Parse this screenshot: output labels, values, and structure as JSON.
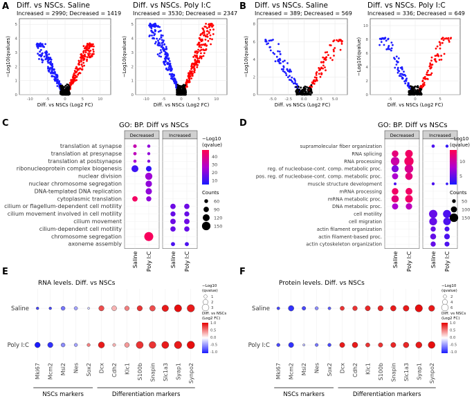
{
  "colors": {
    "increased": "#ff0000",
    "decreased": "#1a1aff",
    "ns": "#000000",
    "strip": "#d0d0d0"
  },
  "panel_a": {
    "letter": "A",
    "plots": [
      {
        "title": "Diff. vs NSCs. Saline",
        "subtitle": "Increased = 2990; Decreased = 1419",
        "ylabel": "−Log10(qvalues)",
        "xlabel": "Diff. vs NSCs (Log2 FC)",
        "xticks": [
          "-10",
          "-5",
          "0",
          "5",
          "10"
        ],
        "yticks": [
          "0",
          "1",
          "2",
          "3",
          "4",
          "5"
        ],
        "xlim": [
          -13,
          13
        ],
        "ylim": [
          0,
          5.4
        ],
        "spread": 7.5,
        "height": 3.4,
        "npts": 380
      },
      {
        "title": "Diff. vs NSCs. Poly I:C",
        "subtitle": "Increased = 3530; Decreased = 2347",
        "ylabel": "−Log10(qvalues)",
        "xlabel": "Diff. vs NSCs (Log2 FC)",
        "xticks": [
          "-10",
          "-5",
          "0",
          "5",
          "10"
        ],
        "yticks": [
          "0",
          "1",
          "2",
          "3",
          "4",
          "5"
        ],
        "xlim": [
          -13,
          13
        ],
        "ylim": [
          0,
          5.4
        ],
        "spread": 8.5,
        "height": 4.8,
        "npts": 460
      }
    ]
  },
  "panel_b": {
    "letter": "B",
    "plots": [
      {
        "title": "Diff. vs NSCs. Saline",
        "subtitle": "Increased = 389; Decreased = 569",
        "ylabel": "−Log10(qvalues)",
        "xlabel": "Diff. vs NSCs (Log2 FC)",
        "xticks": [
          "-5.0",
          "-2.5",
          "0.0",
          "2.5",
          "5.0"
        ],
        "yticks": [
          "0",
          "2",
          "4",
          "6",
          "8"
        ],
        "xlim": [
          -7.5,
          7
        ],
        "ylim": [
          0,
          8.6
        ],
        "spread": 5.5,
        "height": 6,
        "npts": 170
      },
      {
        "title": "Diff. vs NSCs. Poly I:C",
        "subtitle": "Increased = 336; Decreased = 649",
        "ylabel": "−Log10(qvalue)",
        "xlabel": "Diff. vs NSCs (Log2 FC)",
        "xticks": [
          "-5",
          "0",
          "5"
        ],
        "yticks": [
          "0",
          "2",
          "4",
          "6",
          "8",
          "10"
        ],
        "xlim": [
          -9,
          9
        ],
        "ylim": [
          0,
          11
        ],
        "spread": 6.5,
        "height": 8,
        "npts": 170
      }
    ]
  },
  "panel_c": {
    "letter": "C",
    "title": "GO: BP. Diff vs NSCs",
    "facets": [
      "Decreased",
      "Increased"
    ],
    "columns": [
      "Saline",
      "Poly I:C"
    ],
    "terms": [
      "translation at synapse",
      "translation at presynapse",
      "translation at postsynapse",
      "ribonucleoprotein complex biogenesis",
      "nuclear division",
      "nuclear chromosome segregation",
      "DNA-templated DNA replication",
      "cytoplasmic translation",
      "cilium or flagellum-dependent cell motility",
      "cilium movement involved in cell motility",
      "cilium movement",
      "cilium-dependent cell motility",
      "chromosome segregation",
      "axoneme assembly"
    ],
    "legend_title": [
      "−Log10",
      "(qvalue)"
    ],
    "color_ticks": [
      "40",
      "30",
      "20",
      "10"
    ],
    "color_range": [
      5,
      48
    ],
    "size_title": "Counts",
    "size_ticks": [
      "60",
      "90",
      "120",
      "150"
    ],
    "size_range": [
      40,
      160
    ],
    "points": [
      {
        "t": 0,
        "f": 0,
        "c": 0,
        "q": 32,
        "n": 55
      },
      {
        "t": 0,
        "f": 0,
        "c": 1,
        "q": 22,
        "n": 48
      },
      {
        "t": 1,
        "f": 0,
        "c": 0,
        "q": 30,
        "n": 50
      },
      {
        "t": 1,
        "f": 0,
        "c": 1,
        "q": 22,
        "n": 45
      },
      {
        "t": 2,
        "f": 0,
        "c": 0,
        "q": 26,
        "n": 48
      },
      {
        "t": 2,
        "f": 0,
        "c": 1,
        "q": 20,
        "n": 45
      },
      {
        "t": 3,
        "f": 0,
        "c": 0,
        "q": 10,
        "n": 120
      },
      {
        "t": 3,
        "f": 0,
        "c": 1,
        "q": 8,
        "n": 95
      },
      {
        "t": 4,
        "f": 0,
        "c": 1,
        "q": 24,
        "n": 125
      },
      {
        "t": 5,
        "f": 0,
        "c": 1,
        "q": 22,
        "n": 110
      },
      {
        "t": 6,
        "f": 0,
        "c": 1,
        "q": 22,
        "n": 108
      },
      {
        "t": 7,
        "f": 0,
        "c": 0,
        "q": 45,
        "n": 90
      },
      {
        "t": 7,
        "f": 0,
        "c": 1,
        "q": 22,
        "n": 85
      },
      {
        "t": 8,
        "f": 1,
        "c": 0,
        "q": 17,
        "n": 90
      },
      {
        "t": 8,
        "f": 1,
        "c": 1,
        "q": 17,
        "n": 90
      },
      {
        "t": 9,
        "f": 1,
        "c": 0,
        "q": 16,
        "n": 85
      },
      {
        "t": 9,
        "f": 1,
        "c": 1,
        "q": 16,
        "n": 85
      },
      {
        "t": 10,
        "f": 1,
        "c": 0,
        "q": 17,
        "n": 92
      },
      {
        "t": 10,
        "f": 1,
        "c": 1,
        "q": 17,
        "n": 92
      },
      {
        "t": 11,
        "f": 1,
        "c": 0,
        "q": 16,
        "n": 88
      },
      {
        "t": 11,
        "f": 1,
        "c": 1,
        "q": 16,
        "n": 88
      },
      {
        "t": 12,
        "f": 0,
        "c": 1,
        "q": 46,
        "n": 160
      },
      {
        "t": 13,
        "f": 1,
        "c": 0,
        "q": 12,
        "n": 65
      },
      {
        "t": 13,
        "f": 1,
        "c": 1,
        "q": 12,
        "n": 65
      }
    ]
  },
  "panel_d": {
    "letter": "D",
    "title": "GO: BP. Diff vs NSCs",
    "facets": [
      "Decreased",
      "Increased"
    ],
    "columns": [
      "Saline",
      "Poly I:C"
    ],
    "terms": [
      "supramolecular fiber organization",
      "RNA splicing",
      "RNA processing",
      "reg. of nucleobase-cont. comp. metabolic proc.",
      "pos. reg. of nucleobase-cont. comp. metabolic proc.",
      "muscle structure development",
      "mRNA processing",
      "mRNA metabolic proc.",
      "DNA metabolic proc.",
      "cell motility",
      "cell migration",
      "actin filament organization",
      "actin filament-based proc.",
      "actin cytoskeleton organization"
    ],
    "legend_title": [
      "−Log10",
      "(qvalue)"
    ],
    "color_ticks": [
      "10",
      "5"
    ],
    "color_range": [
      2,
      14
    ],
    "size_title": "Counts",
    "size_ticks": [
      "50",
      "100",
      "150"
    ],
    "size_range": [
      30,
      160
    ],
    "points": [
      {
        "t": 0,
        "f": 1,
        "c": 0,
        "q": 4,
        "n": 40
      },
      {
        "t": 0,
        "f": 1,
        "c": 1,
        "q": 3,
        "n": 35
      },
      {
        "t": 1,
        "f": 0,
        "c": 0,
        "q": 12,
        "n": 110
      },
      {
        "t": 1,
        "f": 0,
        "c": 1,
        "q": 13,
        "n": 130
      },
      {
        "t": 2,
        "f": 0,
        "c": 0,
        "q": 10,
        "n": 150
      },
      {
        "t": 2,
        "f": 0,
        "c": 1,
        "q": 13,
        "n": 165
      },
      {
        "t": 3,
        "f": 0,
        "c": 0,
        "q": 6,
        "n": 120
      },
      {
        "t": 3,
        "f": 0,
        "c": 1,
        "q": 11,
        "n": 150
      },
      {
        "t": 4,
        "f": 0,
        "c": 0,
        "q": 8,
        "n": 100
      },
      {
        "t": 4,
        "f": 0,
        "c": 1,
        "q": 12,
        "n": 125
      },
      {
        "t": 5,
        "f": 0,
        "c": 0,
        "q": 4,
        "n": 30
      },
      {
        "t": 5,
        "f": 1,
        "c": 0,
        "q": 4,
        "n": 35
      },
      {
        "t": 5,
        "f": 1,
        "c": 1,
        "q": 3,
        "n": 25
      },
      {
        "t": 6,
        "f": 0,
        "c": 0,
        "q": 13,
        "n": 110
      },
      {
        "t": 6,
        "f": 0,
        "c": 1,
        "q": 13,
        "n": 115
      },
      {
        "t": 7,
        "f": 0,
        "c": 0,
        "q": 12,
        "n": 125
      },
      {
        "t": 7,
        "f": 0,
        "c": 1,
        "q": 13,
        "n": 130
      },
      {
        "t": 8,
        "f": 0,
        "c": 0,
        "q": 8,
        "n": 100
      },
      {
        "t": 8,
        "f": 0,
        "c": 1,
        "q": 9,
        "n": 105
      },
      {
        "t": 9,
        "f": 1,
        "c": 0,
        "q": 5,
        "n": 145
      },
      {
        "t": 9,
        "f": 1,
        "c": 1,
        "q": 4,
        "n": 140
      },
      {
        "t": 10,
        "f": 1,
        "c": 0,
        "q": 5,
        "n": 135
      },
      {
        "t": 10,
        "f": 1,
        "c": 1,
        "q": 4,
        "n": 130
      },
      {
        "t": 11,
        "f": 1,
        "c": 0,
        "q": 5,
        "n": 80
      },
      {
        "t": 11,
        "f": 1,
        "c": 1,
        "q": 4,
        "n": 75
      },
      {
        "t": 12,
        "f": 1,
        "c": 0,
        "q": 5,
        "n": 95
      },
      {
        "t": 12,
        "f": 1,
        "c": 1,
        "q": 4,
        "n": 90
      },
      {
        "t": 13,
        "f": 1,
        "c": 0,
        "q": 5,
        "n": 80
      },
      {
        "t": 13,
        "f": 1,
        "c": 1,
        "q": 4,
        "n": 75
      }
    ]
  },
  "panel_e": {
    "letter": "E",
    "title": "RNA levels. Diff. vs NSCs",
    "rows": [
      "Saline",
      "Poly I:C"
    ],
    "genes": [
      "Mki67",
      "Mcm2",
      "Msi2",
      "Nes",
      "Sox2",
      "Dcx",
      "Cdh2",
      "Klc1",
      "S100b",
      "Snapin",
      "Slc1a3",
      "Syap1",
      "Synpo2"
    ],
    "size_title": [
      "−Log10",
      "(qvalue)"
    ],
    "size_ticks": [
      "1",
      "2",
      "3"
    ],
    "size_range": [
      0,
      3.5
    ],
    "fc_title": [
      "Diff. vs NSCs",
      "(Log2 FC)"
    ],
    "fc_ticks": [
      "1.0",
      "0.5",
      "0.0",
      "-0.5",
      "-1.0"
    ],
    "groups": [
      {
        "label": "NSCs markers",
        "from": 0,
        "to": 4
      },
      {
        "label": "Differentiation markers",
        "from": 5,
        "to": 12
      }
    ],
    "values": [
      [
        {
          "fc": -0.8,
          "q": 0.6
        },
        {
          "fc": -0.8,
          "q": 0.6
        },
        {
          "fc": -0.6,
          "q": 1.4
        },
        {
          "fc": -0.4,
          "q": 1.1
        },
        {
          "fc": -0.2,
          "q": 0.3
        },
        {
          "fc": 0.7,
          "q": 2.1
        },
        {
          "fc": 0.3,
          "q": 1.9
        },
        {
          "fc": 0.5,
          "q": 1.7
        },
        {
          "fc": 0.8,
          "q": 2.1
        },
        {
          "fc": 0.7,
          "q": 2.3
        },
        {
          "fc": 0.9,
          "q": 2.8
        },
        {
          "fc": 0.95,
          "q": 3.2
        },
        {
          "fc": 0.9,
          "q": 3.3
        }
      ],
      [
        {
          "fc": -1.0,
          "q": 2.2
        },
        {
          "fc": -0.9,
          "q": 2.1
        },
        {
          "fc": -0.5,
          "q": 1.4
        },
        {
          "fc": -0.4,
          "q": 1.0
        },
        {
          "fc": 0.5,
          "q": 0.9
        },
        {
          "fc": 0.9,
          "q": 2.6
        },
        {
          "fc": 0.3,
          "q": 0.8
        },
        {
          "fc": 0.4,
          "q": 1.8
        },
        {
          "fc": 0.8,
          "q": 3.1
        },
        {
          "fc": 0.8,
          "q": 3.0
        },
        {
          "fc": 0.9,
          "q": 3.1
        },
        {
          "fc": 0.9,
          "q": 3.3
        },
        {
          "fc": 0.95,
          "q": 3.4
        }
      ]
    ]
  },
  "panel_f": {
    "letter": "F",
    "title": "Protein levels. Diff. vs NSCs",
    "rows": [
      "Saline",
      "Poly I:C"
    ],
    "genes": [
      "Mki67",
      "Mcm2",
      "Msi2",
      "Nes",
      "Sox2",
      "Dcx",
      "Cdh2",
      "Klc1",
      "S100b",
      "Snapin",
      "Slc1a3",
      "Syap1",
      "Synpo2"
    ],
    "size_title": [
      "−Log10",
      "(qvalue)"
    ],
    "size_ticks": [
      "2",
      "4",
      "6"
    ],
    "size_range": [
      0,
      7
    ],
    "fc_title": [
      "Diff. vs NSCs",
      "(Log2 FC)"
    ],
    "fc_ticks": [
      "1.0",
      "0.5",
      "0.0",
      "-0.5",
      "-1.0"
    ],
    "groups": [
      {
        "label": "NSCs markers",
        "from": 0,
        "to": 4
      },
      {
        "label": "Differentiation markers",
        "from": 5,
        "to": 12
      }
    ],
    "values": [
      [
        {
          "fc": -0.8,
          "q": 1.5
        },
        {
          "fc": -0.9,
          "q": 4.5
        },
        {
          "fc": -0.8,
          "q": 2.5
        },
        {
          "fc": -0.5,
          "q": 2.0
        },
        {
          "fc": -0.7,
          "q": 1.5
        },
        {
          "fc": 0.8,
          "q": 3.0
        },
        {
          "fc": 0.8,
          "q": 3.5
        },
        {
          "fc": 0.85,
          "q": 4.0
        },
        {
          "fc": 0.85,
          "q": 4.2
        },
        {
          "fc": 0.9,
          "q": 4.5
        },
        {
          "fc": 0.9,
          "q": 4.8
        },
        {
          "fc": 0.95,
          "q": 6.5
        },
        {
          "fc": 0.9,
          "q": 5.0
        }
      ],
      [
        {
          "fc": -0.8,
          "q": 2.0
        },
        {
          "fc": -0.9,
          "q": 4.0
        },
        {
          "fc": -0.3,
          "q": 0.8
        },
        {
          "fc": -0.6,
          "q": 1.8
        },
        {
          "fc": -0.8,
          "q": 2.0
        },
        {
          "fc": 0.9,
          "q": 4.0
        },
        {
          "fc": 0.9,
          "q": 4.5
        },
        {
          "fc": 0.8,
          "q": 3.0
        },
        {
          "fc": 0.8,
          "q": 3.2
        },
        {
          "fc": 0.85,
          "q": 4.0
        },
        {
          "fc": 0.85,
          "q": 4.5
        },
        {
          "fc": 0.9,
          "q": 5.2
        },
        {
          "fc": 0.95,
          "q": 6.0
        }
      ]
    ]
  }
}
